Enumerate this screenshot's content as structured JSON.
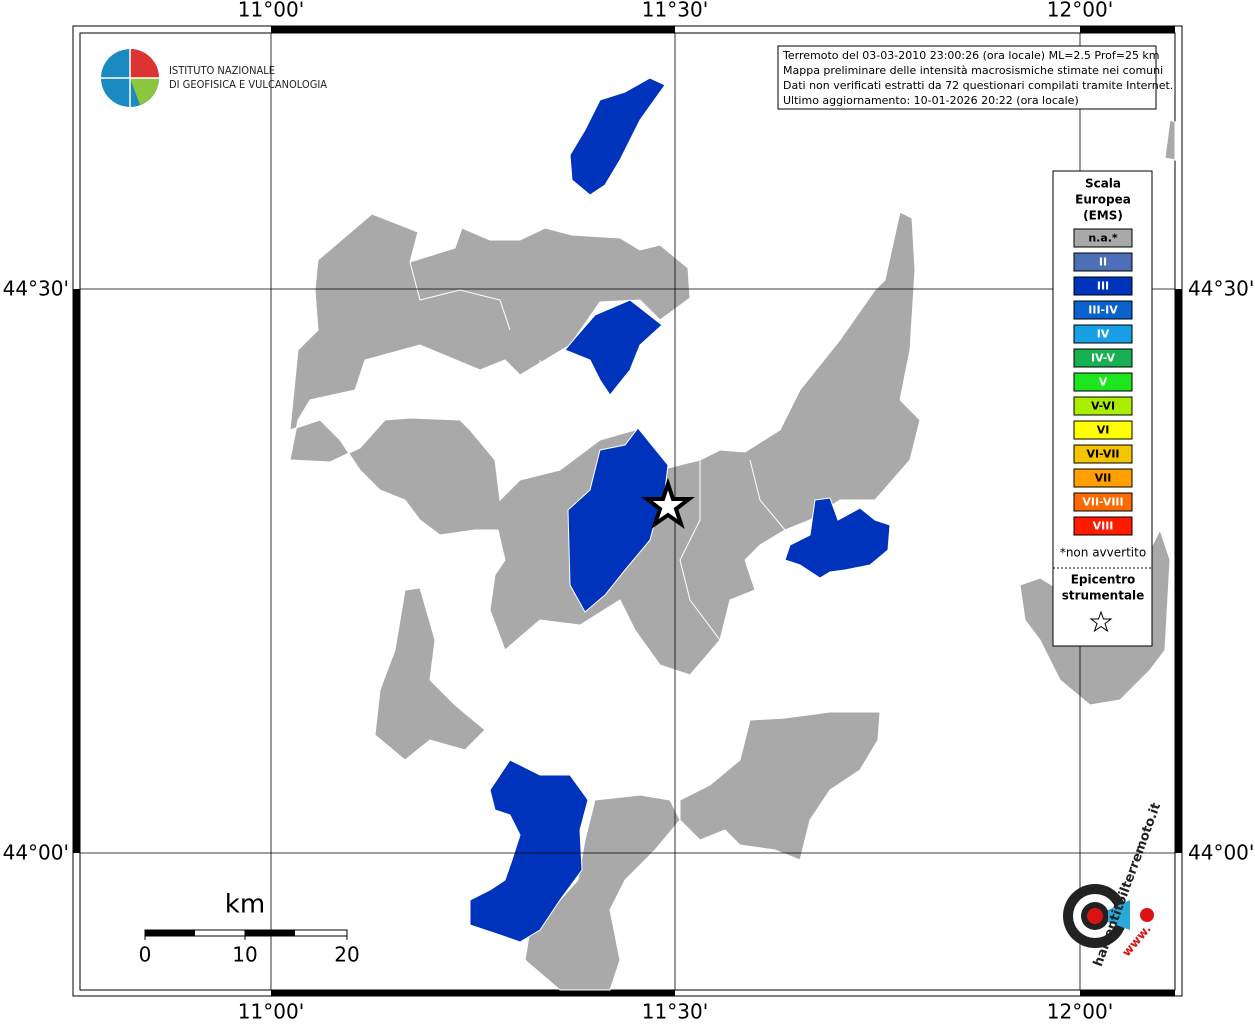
{
  "axes": {
    "longitudes": [
      "11°00'",
      "11°30'",
      "12°00'"
    ],
    "latitudes": [
      "44°30'",
      "44°00'"
    ]
  },
  "logo": {
    "lines": [
      "ISTITUTO NAZIONALE",
      "DI GEOFISICA E VULCANOLOGIA"
    ]
  },
  "info": [
    "Terremoto del 03-03-2010 23:00:26 (ora locale) ML=2.5 Prof=25 km",
    "Mappa preliminare delle intensità macrosismiche stimate nei comuni",
    "Dati non verificati estratti da 72 questionari compilati tramite Internet.",
    "Ultimo aggiornamento: 10-01-2026 20:22 (ora locale)"
  ],
  "legend": {
    "title": [
      "Scala",
      "Europea",
      "(EMS)"
    ],
    "items": [
      {
        "label": "n.a.*",
        "color": "#a9a9a9"
      },
      {
        "label": "II",
        "color": "#4d6fb8"
      },
      {
        "label": "III",
        "color": "#0033bb"
      },
      {
        "label": "III-IV",
        "color": "#0a62cc"
      },
      {
        "label": "IV",
        "color": "#18a0e6"
      },
      {
        "label": "IV-V",
        "color": "#17b052"
      },
      {
        "label": "V",
        "color": "#1ee61e"
      },
      {
        "label": "V-VI",
        "color": "#aaee00"
      },
      {
        "label": "VI",
        "color": "#ffff00"
      },
      {
        "label": "VI-VII",
        "color": "#f5c400"
      },
      {
        "label": "VII",
        "color": "#ffa000"
      },
      {
        "label": "VII-VIII",
        "color": "#ff6a00"
      },
      {
        "label": "VIII",
        "color": "#ff1a00"
      }
    ],
    "note": "*non avvertito",
    "epicenter": [
      "Epicentro",
      "strumentale"
    ]
  },
  "scale_bar": {
    "unit": "km",
    "labels": [
      "0",
      "10",
      "20"
    ]
  },
  "haisentito": {
    "site": "haisentitoilterremoto.it",
    "prefix": "www."
  }
}
